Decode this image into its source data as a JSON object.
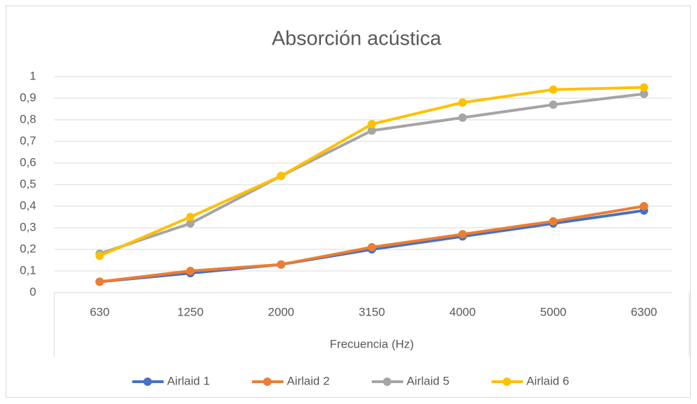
{
  "chart_data": {
    "type": "line",
    "title": "Absorción acústica",
    "xlabel": "Frecuencia (Hz)",
    "categories": [
      "630",
      "1250",
      "2000",
      "3150",
      "4000",
      "5000",
      "6300"
    ],
    "series": [
      {
        "name": "Airlaid 1",
        "color": "#4472c4",
        "values": [
          0.05,
          0.09,
          0.13,
          0.2,
          0.26,
          0.32,
          0.38
        ]
      },
      {
        "name": "Airlaid 2",
        "color": "#ed7d31",
        "values": [
          0.05,
          0.1,
          0.13,
          0.21,
          0.27,
          0.33,
          0.4
        ]
      },
      {
        "name": "Airlaid 5",
        "color": "#a5a5a5",
        "values": [
          0.18,
          0.32,
          0.54,
          0.75,
          0.81,
          0.87,
          0.92
        ]
      },
      {
        "name": "Airlaid 6",
        "color": "#ffc000",
        "values": [
          0.17,
          0.35,
          0.54,
          0.78,
          0.88,
          0.94,
          0.95
        ]
      }
    ],
    "ylim": [
      0,
      1
    ],
    "yticks": [
      0,
      {
        "value": 0.1,
        "label": "0,1"
      },
      {
        "value": 0.2,
        "label": "0,2"
      },
      {
        "value": 0.3,
        "label": "0,3"
      },
      {
        "value": 0.4,
        "label": "0,4"
      },
      {
        "value": 0.5,
        "label": "0,5"
      },
      {
        "value": 0.6,
        "label": "0,6"
      },
      {
        "value": 0.7,
        "label": "0,7"
      },
      {
        "value": 0.8,
        "label": "0,8"
      },
      {
        "value": 0.9,
        "label": "0,9"
      },
      1
    ],
    "grid": true,
    "legend": "bottom"
  }
}
